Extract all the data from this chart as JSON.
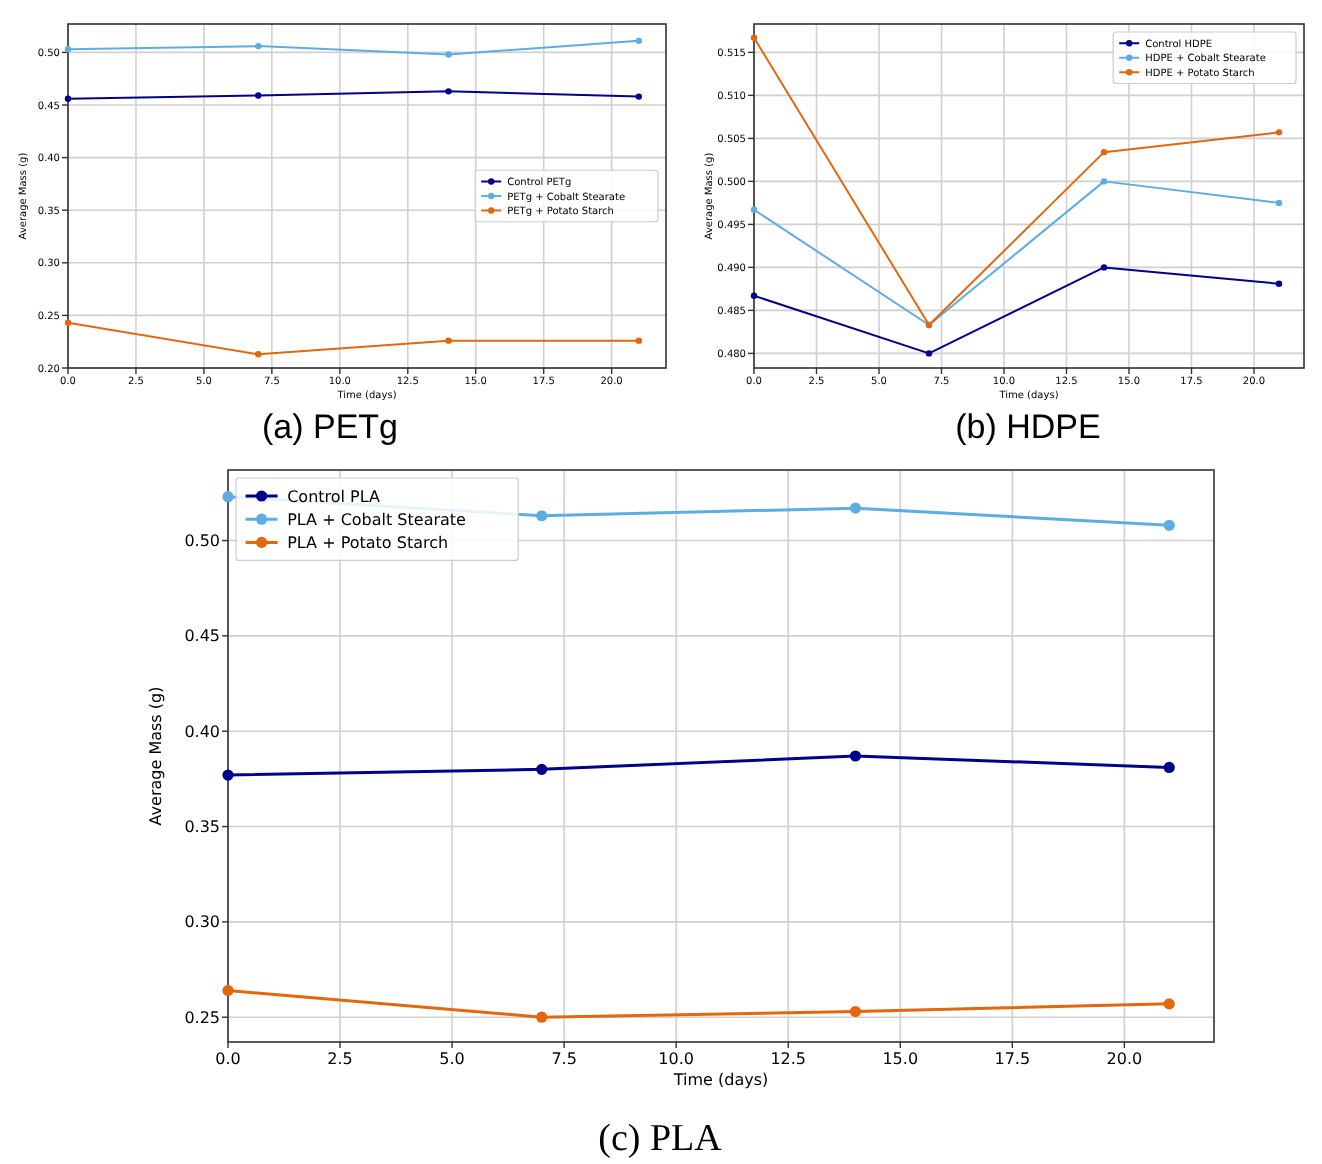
{
  "chart_data": [
    {
      "type": "line",
      "title": "(a) PETg",
      "xlabel": "Time (days)",
      "ylabel": "Average Mass (g)",
      "x": [
        0,
        7,
        14,
        21
      ],
      "xlim": [
        0,
        22
      ],
      "xticks": [
        {
          "value": 0,
          "label": "0.0"
        },
        {
          "value": 2.5,
          "label": "2.5"
        },
        {
          "value": 5,
          "label": "5.0"
        },
        {
          "value": 7.5,
          "label": "7.5"
        },
        {
          "value": 10,
          "label": "10.0"
        },
        {
          "value": 12.5,
          "label": "12.5"
        },
        {
          "value": 15,
          "label": "15.0"
        },
        {
          "value": 17.5,
          "label": "17.5"
        },
        {
          "value": 20,
          "label": "20.0"
        }
      ],
      "ylim": [
        0.2,
        0.527
      ],
      "yticks": [
        {
          "value": 0.2,
          "label": "0.20"
        },
        {
          "value": 0.25,
          "label": "0.25"
        },
        {
          "value": 0.3,
          "label": "0.30"
        },
        {
          "value": 0.35,
          "label": "0.35"
        },
        {
          "value": 0.4,
          "label": "0.40"
        },
        {
          "value": 0.45,
          "label": "0.45"
        },
        {
          "value": 0.5,
          "label": "0.50"
        }
      ],
      "grid": true,
      "legend": "right",
      "marker": "circle",
      "line_style": "solid",
      "series": [
        {
          "name": "Control PETg",
          "color": "#00008b",
          "values": [
            0.456,
            0.459,
            0.463,
            0.458
          ]
        },
        {
          "name": "PETg + Cobalt Stearate",
          "color": "#5dade2",
          "values": [
            0.503,
            0.506,
            0.498,
            0.511
          ]
        },
        {
          "name": "PETg + Potato Starch",
          "color": "#e2670f",
          "values": [
            0.243,
            0.213,
            0.226,
            0.226
          ]
        }
      ]
    },
    {
      "type": "line",
      "title": "(b) HDPE",
      "xlabel": "Time (days)",
      "ylabel": "Average Mass (g)",
      "x": [
        0,
        7,
        14,
        21
      ],
      "xlim": [
        0,
        22
      ],
      "xticks": [
        {
          "value": 0,
          "label": "0.0"
        },
        {
          "value": 2.5,
          "label": "2.5"
        },
        {
          "value": 5,
          "label": "5.0"
        },
        {
          "value": 7.5,
          "label": "7.5"
        },
        {
          "value": 10,
          "label": "10.0"
        },
        {
          "value": 12.5,
          "label": "12.5"
        },
        {
          "value": 15,
          "label": "15.0"
        },
        {
          "value": 17.5,
          "label": "17.5"
        },
        {
          "value": 20,
          "label": "20.0"
        }
      ],
      "ylim": [
        0.4783,
        0.5183
      ],
      "yticks": [
        {
          "value": 0.48,
          "label": "0.480"
        },
        {
          "value": 0.485,
          "label": "0.485"
        },
        {
          "value": 0.49,
          "label": "0.490"
        },
        {
          "value": 0.495,
          "label": "0.495"
        },
        {
          "value": 0.5,
          "label": "0.500"
        },
        {
          "value": 0.505,
          "label": "0.505"
        },
        {
          "value": 0.51,
          "label": "0.510"
        },
        {
          "value": 0.515,
          "label": "0.515"
        }
      ],
      "grid": true,
      "legend": "top right",
      "marker": "circle",
      "line_style": "solid",
      "series": [
        {
          "name": "Control HDPE",
          "color": "#00008b",
          "values": [
            0.4867,
            0.48,
            0.49,
            0.4881
          ]
        },
        {
          "name": "HDPE + Cobalt Stearate",
          "color": "#5dade2",
          "values": [
            0.4967,
            0.4833,
            0.5,
            0.4975
          ]
        },
        {
          "name": "HDPE + Potato Starch",
          "color": "#e2670f",
          "values": [
            0.5167,
            0.4833,
            0.5034,
            0.5057
          ]
        }
      ]
    },
    {
      "type": "line",
      "title": "(c) PLA",
      "xlabel": "Time (days)",
      "ylabel": "Average Mass (g)",
      "x": [
        0,
        7,
        14,
        21
      ],
      "xlim": [
        0,
        22
      ],
      "xticks": [
        {
          "value": 0,
          "label": "0.0"
        },
        {
          "value": 2.5,
          "label": "2.5"
        },
        {
          "value": 5,
          "label": "5.0"
        },
        {
          "value": 7.5,
          "label": "7.5"
        },
        {
          "value": 10,
          "label": "10.0"
        },
        {
          "value": 12.5,
          "label": "12.5"
        },
        {
          "value": 15,
          "label": "15.0"
        },
        {
          "value": 17.5,
          "label": "17.5"
        },
        {
          "value": 20,
          "label": "20.0"
        }
      ],
      "ylim": [
        0.237,
        0.537
      ],
      "yticks": [
        {
          "value": 0.25,
          "label": "0.25"
        },
        {
          "value": 0.3,
          "label": "0.30"
        },
        {
          "value": 0.35,
          "label": "0.35"
        },
        {
          "value": 0.4,
          "label": "0.40"
        },
        {
          "value": 0.45,
          "label": "0.45"
        },
        {
          "value": 0.5,
          "label": "0.50"
        }
      ],
      "grid": true,
      "legend": "top left",
      "marker": "circle",
      "line_style": "solid",
      "series": [
        {
          "name": "Control PLA",
          "color": "#00008b",
          "values": [
            0.377,
            0.38,
            0.387,
            0.381
          ]
        },
        {
          "name": "PLA + Cobalt Stearate",
          "color": "#5dade2",
          "values": [
            0.523,
            0.513,
            0.517,
            0.508
          ]
        },
        {
          "name": "PLA + Potato Starch",
          "color": "#e2670f",
          "values": [
            0.264,
            0.25,
            0.253,
            0.257
          ]
        }
      ]
    }
  ]
}
